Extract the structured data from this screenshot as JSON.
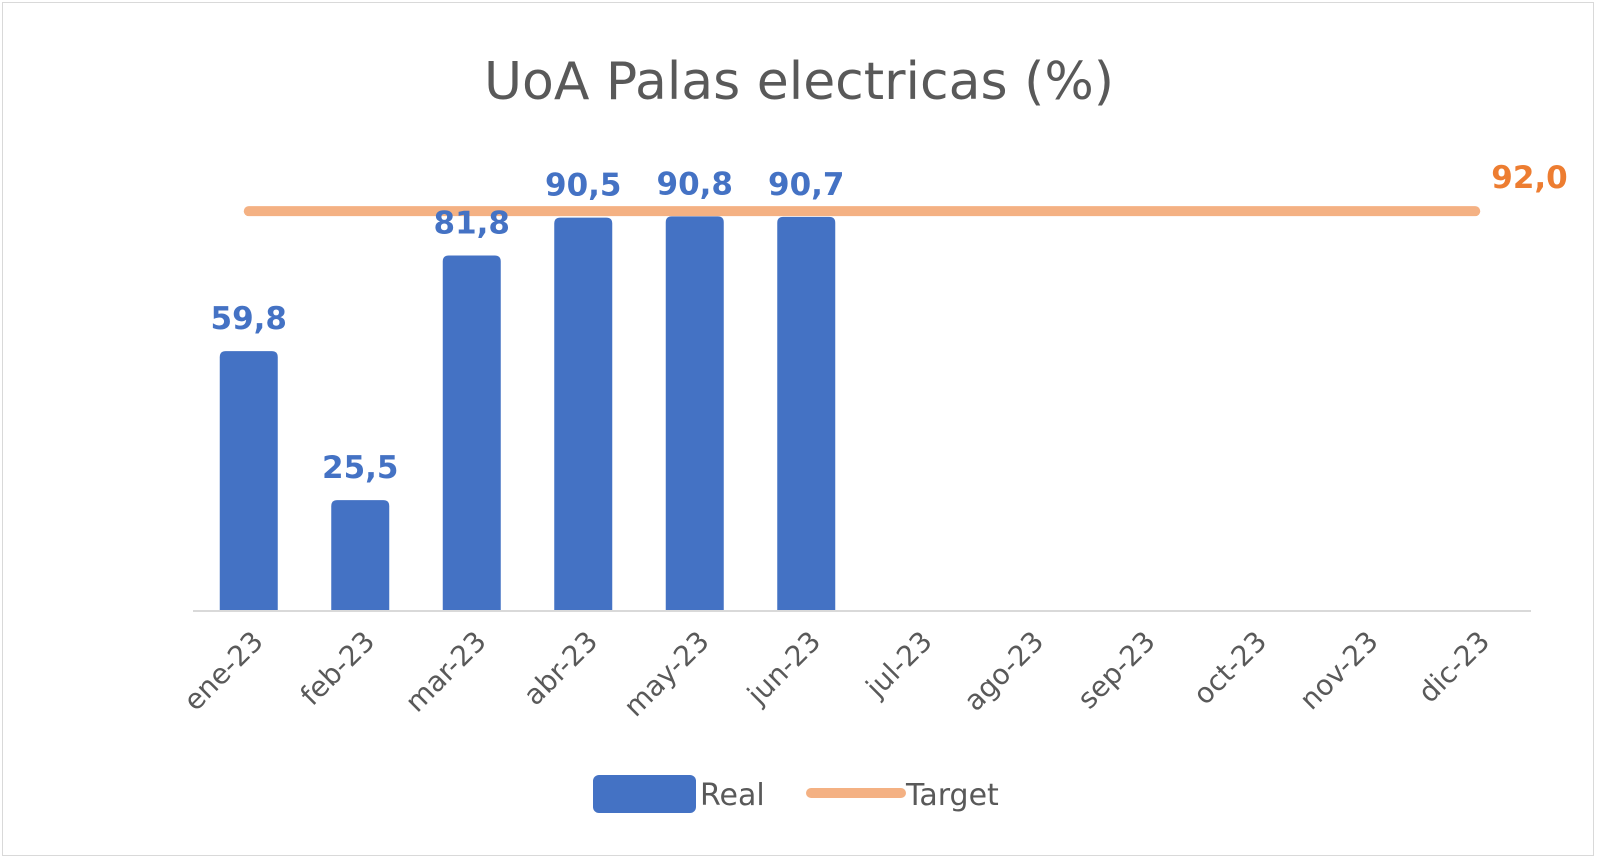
{
  "chart_data": {
    "type": "bar",
    "title": "UoA Palas electricas (%)",
    "categories": [
      "ene-23",
      "feb-23",
      "mar-23",
      "abr-23",
      "may-23",
      "jun-23",
      "jul-23",
      "ago-23",
      "sep-23",
      "oct-23",
      "nov-23",
      "dic-23"
    ],
    "series": [
      {
        "name": "Real",
        "type": "bar",
        "color": "#4472C4",
        "values": [
          59.8,
          25.5,
          81.8,
          90.5,
          90.8,
          90.7,
          null,
          null,
          null,
          null,
          null,
          null
        ],
        "labels": [
          "59,8",
          "25,5",
          "81,8",
          "90,5",
          "90,8",
          "90,7",
          "",
          "",
          "",
          "",
          "",
          ""
        ]
      },
      {
        "name": "Target",
        "type": "line",
        "color": "#F4B183",
        "label_color": "#ED7D31",
        "values": [
          92.0,
          92.0,
          92.0,
          92.0,
          92.0,
          92.0,
          92.0,
          92.0,
          92.0,
          92.0,
          92.0,
          92.0
        ],
        "end_label": "92,0"
      }
    ],
    "ylim": [
      0,
      100
    ],
    "grid": false,
    "legend_position": "bottom"
  }
}
